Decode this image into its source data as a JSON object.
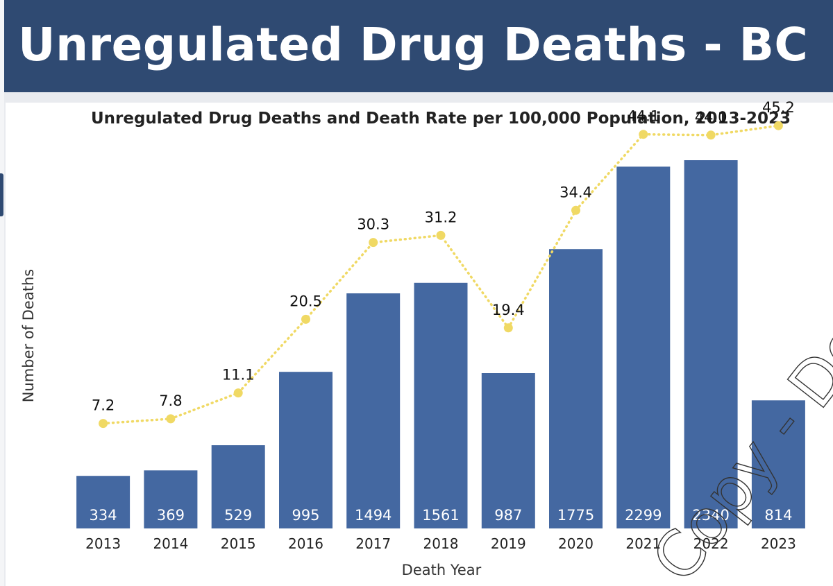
{
  "header": {
    "title": "Unregulated Drug Deaths - BC"
  },
  "watermark": "Copy - Do",
  "colors": {
    "banner": "#2f4a72",
    "bar": "#4468a1",
    "rate_line": "#f0d964"
  },
  "chart_data": {
    "type": "bar",
    "title": "Unregulated Drug Deaths and Death Rate per 100,000 Population, 2013-2023",
    "xlabel": "Death Year",
    "ylabel": "Number of Deaths",
    "categories": [
      "2013",
      "2014",
      "2015",
      "2016",
      "2017",
      "2018",
      "2019",
      "2020",
      "2021",
      "2022",
      "2023"
    ],
    "series": [
      {
        "values": [
          334,
          369,
          529,
          995,
          1494,
          1561,
          987,
          1775,
          2299,
          2340,
          814
        ]
      },
      {
        "type": "line",
        "style": "dotted",
        "values": [
          7.2,
          7.8,
          11.1,
          20.5,
          30.3,
          31.2,
          19.4,
          34.4,
          44.1,
          44.0,
          45.2
        ]
      }
    ],
    "grid": false,
    "legend": "none"
  }
}
